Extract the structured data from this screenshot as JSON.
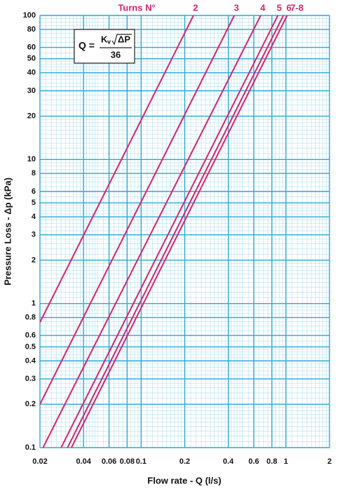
{
  "chart_data": {
    "type": "line",
    "title": "Turns N°",
    "x_label": "Flow rate - Q (l/s)",
    "y_label": "Pressure Loss  - Δp (kPa)",
    "log_x": true,
    "log_y": true,
    "grid": true,
    "xlim": [
      0.02,
      2
    ],
    "ylim": [
      0.1,
      100
    ],
    "xticks": [
      0.02,
      0.04,
      0.06,
      0.08,
      0.1,
      0.2,
      0.4,
      0.6,
      0.8,
      1,
      2
    ],
    "yticks": [
      0.1,
      0.2,
      0.3,
      0.4,
      0.5,
      0.6,
      0.8,
      1,
      2,
      3,
      4,
      5,
      6,
      8,
      10,
      20,
      30,
      40,
      50,
      60,
      80,
      100
    ],
    "series": [
      {
        "name": "2",
        "color": "#d6246e",
        "x": [
          0.02,
          0.23
        ],
        "values": [
          0.74,
          100
        ]
      },
      {
        "name": "3",
        "color": "#d6246e",
        "x": [
          0.02,
          0.44
        ],
        "values": [
          0.2,
          100
        ]
      },
      {
        "name": "4",
        "color": "#d6246e",
        "x": [
          0.021,
          0.67
        ],
        "values": [
          0.1,
          100
        ]
      },
      {
        "name": "5",
        "color": "#d6246e",
        "x": [
          0.028,
          0.88
        ],
        "values": [
          0.1,
          100
        ]
      },
      {
        "name": "6",
        "color": "#d6246e",
        "x": [
          0.031,
          0.96
        ],
        "values": [
          0.1,
          100
        ]
      },
      {
        "name": "7-8",
        "color": "#d6246e",
        "x": [
          0.033,
          1.02
        ],
        "values": [
          0.1,
          100
        ]
      }
    ],
    "formula": {
      "lhs": "Q =",
      "k": "K",
      "v": "v",
      "dp": "ΔP",
      "den": "36"
    }
  }
}
